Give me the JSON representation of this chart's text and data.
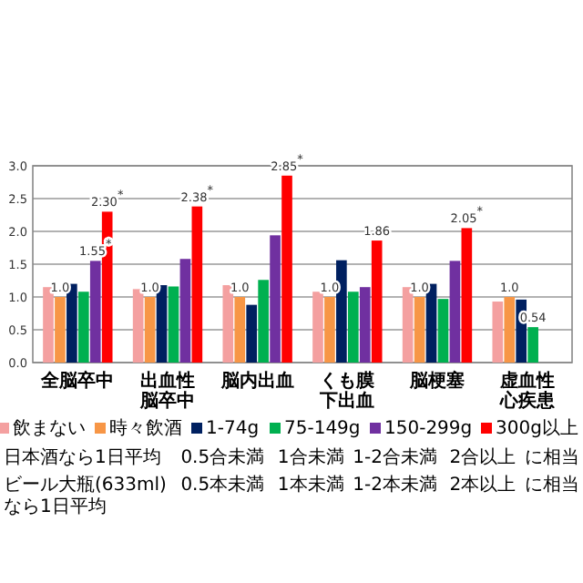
{
  "chart_data": {
    "type": "bar",
    "categories": [
      "全脳卒中",
      "出血性脳卒中",
      "脳内出血",
      "くも膜下出血",
      "脳梗塞",
      "虚血性心疾患"
    ],
    "series": [
      {
        "name": "飲まない",
        "color": "#f4a0a0",
        "values": [
          1.15,
          1.12,
          1.18,
          1.08,
          1.15,
          0.93
        ]
      },
      {
        "name": "時々飲酒",
        "color": "#f79646",
        "values": [
          1.0,
          1.0,
          1.0,
          1.0,
          1.0,
          1.0
        ],
        "value_labels": [
          "1.0",
          "1.0",
          "1.0",
          "1.0",
          "1.0",
          "1.0"
        ]
      },
      {
        "name": "1-74g",
        "color": "#002060",
        "values": [
          1.2,
          1.18,
          0.88,
          1.56,
          1.2,
          0.96
        ]
      },
      {
        "name": "75-149g",
        "color": "#00b050",
        "values": [
          1.08,
          1.16,
          1.26,
          1.08,
          0.97,
          0.54
        ],
        "value_labels": [
          null,
          null,
          null,
          null,
          null,
          "0.54"
        ]
      },
      {
        "name": "150-299g",
        "color": "#7030a0",
        "values": [
          1.55,
          1.58,
          1.94,
          1.15,
          1.55,
          null
        ],
        "value_labels": [
          "1.55$^{*}$",
          null,
          null,
          null,
          null,
          null
        ]
      },
      {
        "name": "300g以上",
        "color": "#ff0000",
        "values": [
          2.3,
          2.38,
          2.85,
          1.86,
          2.05,
          null
        ],
        "value_labels": [
          "2.30$^{*}$",
          "2.38$^{*}$",
          "2.85$^{*}$",
          "1.86",
          "2.05$^{*}$",
          null
        ]
      }
    ],
    "ylim": [
      0,
      3
    ],
    "yticks": [
      {
        "value": 0,
        "label": "0.0"
      },
      {
        "value": 0.5,
        "label": "0.5"
      },
      {
        "value": 1,
        "label": "1.0"
      },
      {
        "value": 1.5,
        "label": "1.5"
      },
      {
        "value": 2,
        "label": "2.0"
      },
      {
        "value": 2.5,
        "label": "2.5"
      },
      {
        "value": 3,
        "label": "3.0"
      }
    ],
    "grid": "y",
    "legend": "bottom",
    "annotations": [
      "日本酒なら1日平均",
      "0.5合未満",
      "1合未満",
      "1-2合未満",
      "2合以上",
      "に相当",
      "ビール大瓶(633ml)なら1日平均",
      "0.5本未満",
      "1本未満",
      "1-2本未満",
      "2本以上",
      "に相当"
    ]
  }
}
